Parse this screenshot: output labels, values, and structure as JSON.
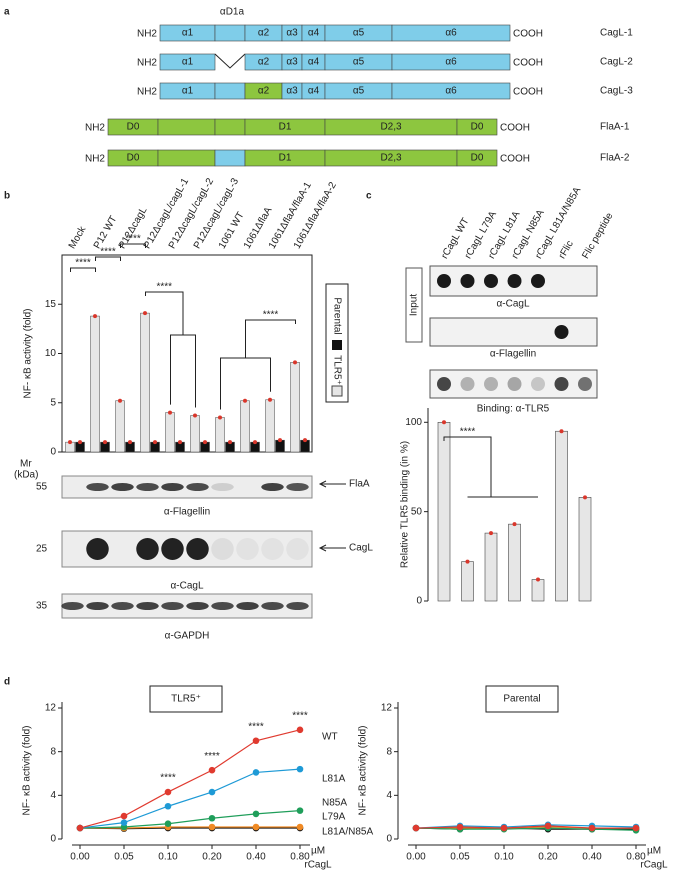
{
  "panel_labels": [
    "a",
    "b",
    "c",
    "d"
  ],
  "diagram": {
    "domain_label": "αD1a",
    "nh2": "NH2",
    "cooh": "COOH",
    "rows": [
      {
        "name": "CagL-1",
        "labels": [
          "α1",
          "α2",
          "α3",
          "α4",
          "α5",
          "α6"
        ]
      },
      {
        "name": "CagL-2",
        "labels": [
          "α1",
          "α2",
          "α3",
          "α4",
          "α5",
          "α6"
        ]
      },
      {
        "name": "CagL-3",
        "labels": [
          "α1",
          "α2",
          "α3",
          "α4",
          "α5",
          "α6"
        ]
      },
      {
        "name": "FlaA-1",
        "labels": [
          "D0",
          "D1",
          "D2,3",
          "D0"
        ]
      },
      {
        "name": "FlaA-2",
        "labels": [
          "D0",
          "D1",
          "D2,3",
          "D0"
        ]
      }
    ],
    "colors": {
      "cagl": "#7fcde9",
      "flaa": "#8dc63f",
      "cagl_label": "#4db8e0",
      "flaa_label": "#8dc63f"
    }
  },
  "blots": {
    "mr": "Mr",
    "kda": "(kDa)",
    "markers": [
      55,
      25,
      35
    ],
    "arrows": [
      "FlaA",
      "CagL"
    ],
    "antibodies": [
      "α-Flagellin",
      "α-CagL",
      "α-GAPDH"
    ]
  },
  "dot_blot": {
    "input": "Input",
    "antibodies": [
      "α-CagL",
      "α-Flagellin",
      "Binding: α-TLR5"
    ]
  },
  "chart_data": [
    {
      "type": "bar",
      "ylabel": "NF- κB activity (fold)",
      "categories": [
        "Mock",
        "P12 WT",
        "P12ΔcagL",
        "P12ΔcagL/cagL-1",
        "P12ΔcagL/cagL-2",
        "P12ΔcagL/cagL-3",
        "1061 WT",
        "1061ΔflaA",
        "1061ΔflaA/flaA-1",
        "1061ΔflaA/flaA-2"
      ],
      "category_colors": [
        "#111111",
        "#29a8e0",
        "#29a8e0",
        "#29a8e0",
        "#29a8e0",
        "#29a8e0",
        "#8dc63f",
        "#8dc63f",
        "#8dc63f",
        "#8dc63f"
      ],
      "series": [
        {
          "name": "TLR5⁺",
          "color": "#e6e6e6",
          "values": [
            1,
            13.8,
            5.2,
            14.1,
            4.0,
            3.7,
            3.5,
            5.2,
            5.3,
            9.1
          ]
        },
        {
          "name": "Parental",
          "color": "#111111",
          "values": [
            1,
            1,
            1,
            1,
            1,
            1,
            1,
            1,
            1.2,
            1.2
          ]
        }
      ],
      "ylim": [
        0,
        20
      ],
      "yticks": [
        0,
        5,
        10,
        15
      ],
      "annotations": [
        "****",
        "****",
        "****",
        "****",
        "****"
      ]
    },
    {
      "type": "bar",
      "ylabel": "Relative TLR5 binding (in %)",
      "categories": [
        "rCagL WT",
        "rCagL L79A",
        "rCagL L81A",
        "rCagL N85A",
        "rCagL L81A/N85A",
        "rFlic",
        "Flic peptide"
      ],
      "values": [
        100,
        22,
        38,
        43,
        12,
        95,
        58
      ],
      "color": "#e6e6e6",
      "ylim": [
        0,
        108
      ],
      "yticks": [
        0,
        50,
        100
      ],
      "annotations": [
        "****"
      ]
    },
    {
      "type": "line",
      "title": "TLR5⁺",
      "ylabel": "NF- κB activity (fold)",
      "x_unit": "µM",
      "xlabel": "rCagL",
      "categories": [
        "0.00",
        "0.05",
        "0.10",
        "0.20",
        "0.40",
        "0.80"
      ],
      "ylim": [
        0,
        12
      ],
      "yticks": [
        0,
        4,
        8,
        12
      ],
      "series": [
        {
          "name": "WT",
          "color": "#e03a2f",
          "values": [
            1,
            2.1,
            4.3,
            6.3,
            9.0,
            10.0
          ]
        },
        {
          "name": "L81A",
          "color": "#1e9ad6",
          "values": [
            1,
            1.5,
            3.0,
            4.3,
            6.1,
            6.4
          ]
        },
        {
          "name": "N85A",
          "color": "#1f9e5a",
          "values": [
            1,
            1.1,
            1.4,
            1.9,
            2.3,
            2.6
          ]
        },
        {
          "name": "L79A",
          "color": "#f08a24",
          "values": [
            1,
            1.0,
            1.1,
            1.1,
            1.1,
            1.1
          ]
        },
        {
          "name": "L81A/N85A",
          "color": "#111111",
          "values": [
            1,
            0.95,
            1.0,
            1.0,
            1.0,
            1.0
          ]
        }
      ],
      "annotations": [
        {
          "category": "0.10",
          "text": "****"
        },
        {
          "category": "0.20",
          "text": "****"
        },
        {
          "category": "0.40",
          "text": "****"
        },
        {
          "category": "0.80",
          "text": "****"
        }
      ]
    },
    {
      "type": "line",
      "title": "Parental",
      "ylabel": "NF- κB activity (fold)",
      "x_unit": "µM",
      "xlabel": "rCagL",
      "categories": [
        "0.00",
        "0.05",
        "0.10",
        "0.20",
        "0.40",
        "0.80"
      ],
      "ylim": [
        0,
        12
      ],
      "yticks": [
        0,
        4,
        8,
        12
      ],
      "series": [
        {
          "color": "#e03a2f",
          "values": [
            1,
            1.1,
            1.0,
            1.2,
            1.0,
            1.0
          ]
        },
        {
          "color": "#1e9ad6",
          "values": [
            1,
            1.2,
            1.1,
            1.3,
            1.2,
            1.1
          ]
        },
        {
          "color": "#1f9e5a",
          "values": [
            1,
            0.9,
            0.9,
            1.0,
            0.9,
            0.8
          ]
        },
        {
          "color": "#f08a24",
          "values": [
            1,
            1.0,
            1.0,
            1.1,
            1.0,
            1.0
          ]
        },
        {
          "color": "#111111",
          "values": [
            1,
            0.9,
            1.0,
            0.9,
            0.9,
            0.9
          ]
        }
      ]
    }
  ]
}
